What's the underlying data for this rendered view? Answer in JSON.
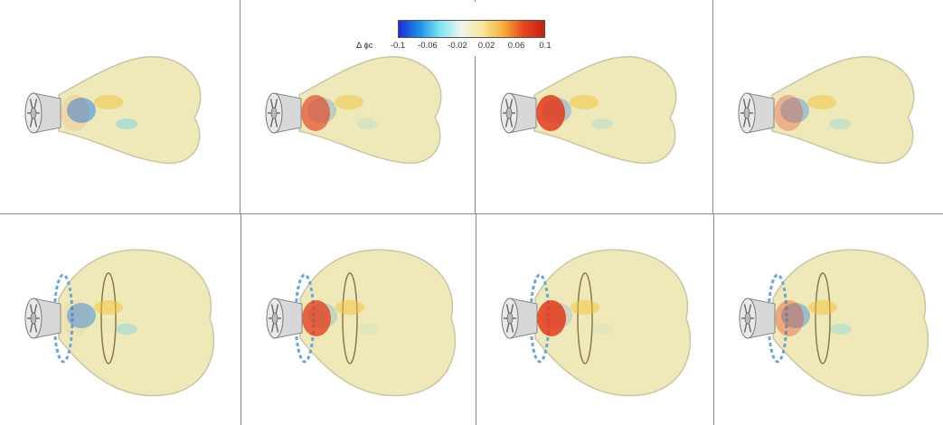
{
  "colorbar": {
    "variable_label": "Δ ϕc",
    "ticks": [
      "-0.1",
      "-0.06",
      "-0.02",
      "0.02",
      "0.06",
      "0.1"
    ],
    "gradient": [
      "#1a2fd8",
      "#1b8fe8",
      "#7fe6f2",
      "#f2f4f0",
      "#f6e79a",
      "#f6b33a",
      "#e5461e",
      "#c31f12"
    ]
  },
  "colors": {
    "flame_base": "#efe8b8",
    "flame_edge": "#c9c6a4",
    "nozzle": "#d8d8d8",
    "hot": "#e33b1c",
    "cold": "#2f86e2",
    "cool": "#6fd3ea",
    "warm": "#f3c23a"
  },
  "rows": [
    {
      "row": "top",
      "panels": [
        "top-1",
        "top-2",
        "top-3",
        "top-4"
      ],
      "variant": "narrow-flame"
    },
    {
      "row": "bottom",
      "panels": [
        "bottom-1",
        "bottom-2",
        "bottom-3",
        "bottom-4"
      ],
      "variant": "wide-flame-with-ring"
    }
  ],
  "panel_states": {
    "top-1": {
      "hot_level": 0.1,
      "cold_level": 0.8
    },
    "top-2": {
      "hot_level": 0.7,
      "cold_level": 0.3
    },
    "top-3": {
      "hot_level": 0.95,
      "cold_level": 0.4
    },
    "top-4": {
      "hot_level": 0.35,
      "cold_level": 0.5
    },
    "bottom-1": {
      "hot_level": 0.05,
      "cold_level": 0.7
    },
    "bottom-2": {
      "hot_level": 0.85,
      "cold_level": 0.2
    },
    "bottom-3": {
      "hot_level": 0.95,
      "cold_level": 0.15
    },
    "bottom-4": {
      "hot_level": 0.4,
      "cold_level": 0.6
    }
  }
}
